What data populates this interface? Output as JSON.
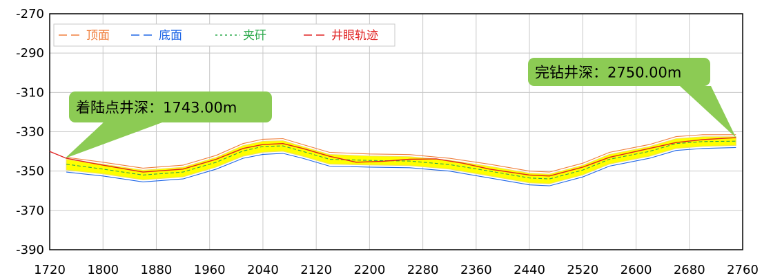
{
  "chart_data": {
    "type": "line",
    "xlim": [
      1720,
      2760
    ],
    "ylim": [
      -390,
      -270
    ],
    "x_ticks": [
      "1720",
      "1800",
      "1880",
      "1960",
      "2040",
      "2120",
      "2200",
      "2280",
      "2360",
      "2440",
      "2520",
      "2600",
      "2680",
      "2760"
    ],
    "y_ticks": [
      "-270",
      "-290",
      "-310",
      "-330",
      "-350",
      "-370",
      "-390"
    ],
    "grid": true,
    "legend_position": "top-left",
    "series": [
      {
        "name": "顶面",
        "color": "#f07f3c",
        "points": [
          [
            1745,
            -343.0
          ],
          [
            1800,
            -345.5
          ],
          [
            1860,
            -348.5
          ],
          [
            1920,
            -347.0
          ],
          [
            1970,
            -342.0
          ],
          [
            2010,
            -336.0
          ],
          [
            2040,
            -333.8
          ],
          [
            2070,
            -333.5
          ],
          [
            2100,
            -336.5
          ],
          [
            2140,
            -340.5
          ],
          [
            2200,
            -341.3
          ],
          [
            2260,
            -341.6
          ],
          [
            2320,
            -343.5
          ],
          [
            2380,
            -346.5
          ],
          [
            2440,
            -350.0
          ],
          [
            2470,
            -350.5
          ],
          [
            2520,
            -346.0
          ],
          [
            2560,
            -340.5
          ],
          [
            2620,
            -336.5
          ],
          [
            2660,
            -332.5
          ],
          [
            2700,
            -331.5
          ],
          [
            2750,
            -331.5
          ]
        ]
      },
      {
        "name": "底面",
        "color": "#1e66e6",
        "points": [
          [
            1745,
            -350.5
          ],
          [
            1800,
            -352.5
          ],
          [
            1860,
            -355.5
          ],
          [
            1920,
            -354.0
          ],
          [
            1970,
            -349.0
          ],
          [
            2010,
            -343.5
          ],
          [
            2040,
            -341.5
          ],
          [
            2070,
            -341.0
          ],
          [
            2100,
            -343.5
          ],
          [
            2140,
            -347.5
          ],
          [
            2200,
            -348.0
          ],
          [
            2260,
            -348.3
          ],
          [
            2320,
            -350.0
          ],
          [
            2380,
            -353.5
          ],
          [
            2440,
            -357.0
          ],
          [
            2470,
            -357.5
          ],
          [
            2520,
            -353.0
          ],
          [
            2560,
            -347.5
          ],
          [
            2620,
            -343.5
          ],
          [
            2660,
            -339.5
          ],
          [
            2700,
            -338.5
          ],
          [
            2750,
            -338.0
          ]
        ]
      },
      {
        "name": "夹矸",
        "color": "#2aa84a",
        "points": [
          [
            1745,
            -346.5
          ],
          [
            1800,
            -349.0
          ],
          [
            1860,
            -352.0
          ],
          [
            1920,
            -350.5
          ],
          [
            1970,
            -345.5
          ],
          [
            2010,
            -339.8
          ],
          [
            2040,
            -337.5
          ],
          [
            2070,
            -337.2
          ],
          [
            2100,
            -340.0
          ],
          [
            2140,
            -344.0
          ],
          [
            2200,
            -344.6
          ],
          [
            2260,
            -344.9
          ],
          [
            2320,
            -346.7
          ],
          [
            2380,
            -350.0
          ],
          [
            2440,
            -353.5
          ],
          [
            2470,
            -354.0
          ],
          [
            2520,
            -349.5
          ],
          [
            2560,
            -344.0
          ],
          [
            2620,
            -340.0
          ],
          [
            2660,
            -336.0
          ],
          [
            2700,
            -335.0
          ],
          [
            2750,
            -334.8
          ]
        ]
      },
      {
        "name": "井眼轨迹",
        "color": "#e02020",
        "points": [
          [
            1720,
            -340.0
          ],
          [
            1745,
            -343.5
          ],
          [
            1800,
            -347.0
          ],
          [
            1860,
            -350.5
          ],
          [
            1920,
            -349.0
          ],
          [
            1970,
            -344.0
          ],
          [
            2010,
            -338.5
          ],
          [
            2040,
            -336.5
          ],
          [
            2070,
            -336.0
          ],
          [
            2100,
            -338.5
          ],
          [
            2140,
            -342.5
          ],
          [
            2180,
            -345.5
          ],
          [
            2220,
            -345.0
          ],
          [
            2260,
            -344.0
          ],
          [
            2300,
            -343.8
          ],
          [
            2340,
            -346.0
          ],
          [
            2380,
            -349.0
          ],
          [
            2440,
            -352.0
          ],
          [
            2470,
            -352.5
          ],
          [
            2520,
            -348.0
          ],
          [
            2560,
            -343.0
          ],
          [
            2620,
            -338.5
          ],
          [
            2660,
            -335.5
          ],
          [
            2700,
            -334.0
          ],
          [
            2750,
            -333.0
          ]
        ]
      }
    ],
    "annotations": [
      {
        "text": "着陆点井深：1743.00m",
        "x": 1743,
        "y": -343.5
      },
      {
        "text": "完钻井深：2750.00m",
        "x": 2750,
        "y": -333.0
      }
    ],
    "band": {
      "fill": "#ffff00",
      "edge": "#f0e060"
    }
  }
}
